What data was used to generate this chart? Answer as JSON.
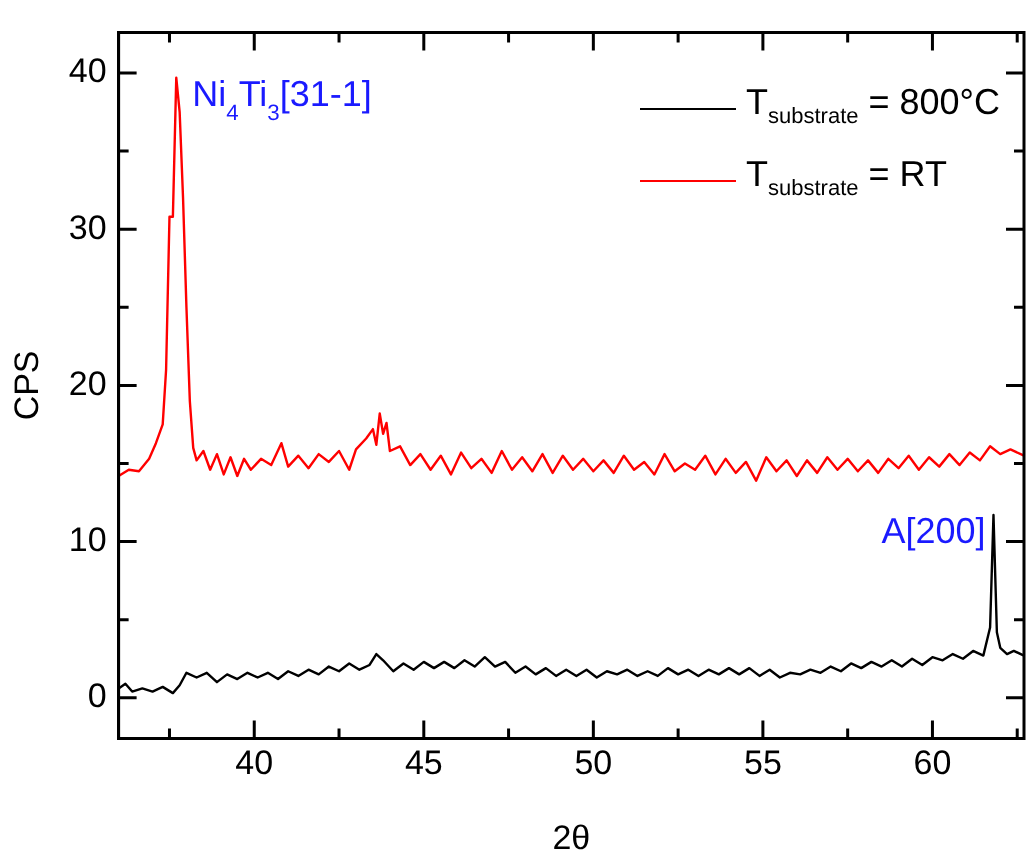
{
  "chart_data": {
    "type": "line",
    "xlabel": "2θ",
    "ylabel": "CPS",
    "xlim": [
      36,
      62.7
    ],
    "ylim": [
      -2.6,
      42.6
    ],
    "xticks": [
      {
        "value": 37.5,
        "label": null
      },
      40,
      {
        "value": 42.5,
        "label": null
      },
      45,
      {
        "value": 47.5,
        "label": null
      },
      50,
      {
        "value": 52.5,
        "label": null
      },
      55,
      {
        "value": 57.5,
        "label": null
      },
      60,
      {
        "value": 62.5,
        "label": null
      }
    ],
    "yticks": [
      0,
      {
        "value": 5,
        "label": null
      },
      10,
      {
        "value": 15,
        "label": null
      },
      20,
      {
        "value": 25,
        "label": null
      },
      30,
      {
        "value": 35,
        "label": null
      },
      40
    ],
    "grid": false,
    "legend": "top right",
    "marker": "none",
    "line_style": "solid",
    "annotations": [
      {
        "text": "Ni$_{4}$Ti$_{3}$[31-1]",
        "x": 37.7,
        "y": 39.7
      },
      {
        "text": "A[200]",
        "x": 61.8,
        "y": 11.7
      }
    ],
    "series": [
      {
        "name": "T$_{substrate}$ = 800°C",
        "color": "#000000",
        "x": [
          36.0,
          36.2,
          36.4,
          36.7,
          37.0,
          37.3,
          37.6,
          37.8,
          38.0,
          38.3,
          38.6,
          38.9,
          39.2,
          39.5,
          39.8,
          40.1,
          40.4,
          40.7,
          41.0,
          41.3,
          41.6,
          41.9,
          42.2,
          42.5,
          42.8,
          43.1,
          43.4,
          43.6,
          43.8,
          44.1,
          44.4,
          44.7,
          45.0,
          45.3,
          45.6,
          45.9,
          46.2,
          46.5,
          46.8,
          47.1,
          47.4,
          47.7,
          48.0,
          48.3,
          48.6,
          48.9,
          49.2,
          49.5,
          49.8,
          50.1,
          50.4,
          50.7,
          51.0,
          51.3,
          51.6,
          51.9,
          52.2,
          52.5,
          52.8,
          53.1,
          53.4,
          53.7,
          54.0,
          54.3,
          54.6,
          54.9,
          55.2,
          55.5,
          55.8,
          56.1,
          56.4,
          56.7,
          57.0,
          57.3,
          57.6,
          57.9,
          58.2,
          58.5,
          58.8,
          59.1,
          59.4,
          59.7,
          60.0,
          60.3,
          60.6,
          60.9,
          61.2,
          61.5,
          61.7,
          61.8,
          61.9,
          62.0,
          62.2,
          62.4,
          62.7
        ],
        "values": [
          0.6,
          0.9,
          0.4,
          0.6,
          0.4,
          0.7,
          0.3,
          0.8,
          1.6,
          1.3,
          1.6,
          1.0,
          1.5,
          1.2,
          1.6,
          1.3,
          1.6,
          1.2,
          1.7,
          1.4,
          1.8,
          1.5,
          2.0,
          1.7,
          2.2,
          1.8,
          2.1,
          2.8,
          2.4,
          1.7,
          2.2,
          1.8,
          2.3,
          1.9,
          2.3,
          1.9,
          2.4,
          2.0,
          2.6,
          2.0,
          2.3,
          1.6,
          2.0,
          1.5,
          1.9,
          1.4,
          1.8,
          1.4,
          1.8,
          1.3,
          1.7,
          1.5,
          1.8,
          1.4,
          1.7,
          1.4,
          1.9,
          1.5,
          1.8,
          1.4,
          1.8,
          1.5,
          1.9,
          1.5,
          1.9,
          1.4,
          1.8,
          1.3,
          1.6,
          1.5,
          1.8,
          1.6,
          2.0,
          1.7,
          2.2,
          1.9,
          2.3,
          2.0,
          2.4,
          2.0,
          2.5,
          2.1,
          2.6,
          2.4,
          2.8,
          2.5,
          3.0,
          2.7,
          4.5,
          11.7,
          4.2,
          3.2,
          2.8,
          3.0,
          2.7
        ]
      },
      {
        "name": "T$_{substrate}$ = RT",
        "color": "#ff0000",
        "x": [
          36.0,
          36.3,
          36.6,
          36.9,
          37.1,
          37.3,
          37.4,
          37.5,
          37.6,
          37.7,
          37.8,
          37.9,
          38.0,
          38.1,
          38.2,
          38.3,
          38.5,
          38.7,
          38.9,
          39.1,
          39.3,
          39.5,
          39.7,
          39.9,
          40.2,
          40.5,
          40.8,
          41.0,
          41.3,
          41.6,
          41.9,
          42.2,
          42.5,
          42.8,
          43.0,
          43.3,
          43.5,
          43.6,
          43.7,
          43.8,
          43.9,
          44.0,
          44.3,
          44.6,
          44.9,
          45.2,
          45.5,
          45.8,
          46.1,
          46.4,
          46.7,
          47.0,
          47.3,
          47.6,
          47.9,
          48.2,
          48.5,
          48.8,
          49.1,
          49.4,
          49.7,
          50.0,
          50.3,
          50.6,
          50.9,
          51.2,
          51.5,
          51.8,
          52.1,
          52.4,
          52.7,
          53.0,
          53.3,
          53.6,
          53.9,
          54.2,
          54.5,
          54.8,
          55.1,
          55.4,
          55.7,
          56.0,
          56.3,
          56.6,
          56.9,
          57.2,
          57.5,
          57.8,
          58.1,
          58.4,
          58.7,
          59.0,
          59.3,
          59.6,
          59.9,
          60.2,
          60.5,
          60.8,
          61.1,
          61.4,
          61.7,
          62.0,
          62.3,
          62.7
        ],
        "values": [
          14.2,
          14.6,
          14.5,
          15.3,
          16.3,
          17.5,
          21,
          30.8,
          30.8,
          39.7,
          37.5,
          32,
          25,
          19,
          16,
          15.2,
          15.8,
          14.6,
          15.6,
          14.3,
          15.4,
          14.2,
          15.3,
          14.6,
          15.3,
          14.9,
          16.3,
          14.8,
          15.5,
          14.7,
          15.6,
          15.1,
          15.8,
          14.6,
          15.9,
          16.6,
          17.2,
          16.2,
          18.2,
          16.9,
          17.6,
          15.8,
          16.1,
          14.9,
          15.6,
          14.6,
          15.5,
          14.3,
          15.7,
          14.7,
          15.3,
          14.4,
          15.8,
          14.6,
          15.4,
          14.5,
          15.6,
          14.4,
          15.5,
          14.6,
          15.3,
          14.5,
          15.2,
          14.4,
          15.5,
          14.6,
          15.1,
          14.3,
          15.6,
          14.5,
          15.0,
          14.6,
          15.5,
          14.3,
          15.3,
          14.4,
          15.1,
          13.9,
          15.4,
          14.5,
          15.2,
          14.2,
          15.2,
          14.4,
          15.4,
          14.6,
          15.3,
          14.5,
          15.2,
          14.4,
          15.3,
          14.7,
          15.5,
          14.6,
          15.4,
          14.8,
          15.6,
          14.9,
          15.7,
          15.2,
          16.1,
          15.6,
          15.9,
          15.5
        ]
      }
    ]
  }
}
